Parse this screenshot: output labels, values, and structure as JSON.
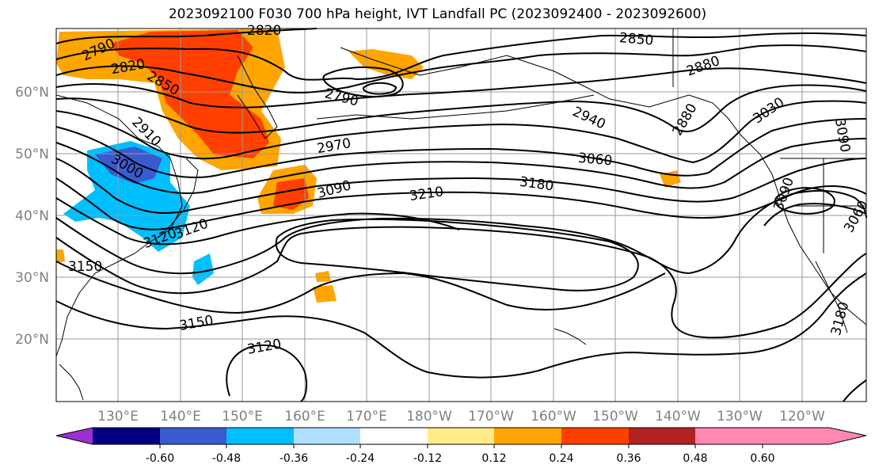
{
  "title": "2023092100 F030 700 hPa height, IVT Landfall PC (2023092400 - 2023092600)",
  "map": {
    "lat_labels": [
      "60°N",
      "50°N",
      "40°N",
      "30°N",
      "20°N"
    ],
    "lon_labels": [
      "130°E",
      "140°E",
      "150°E",
      "160°E",
      "170°E",
      "180°W",
      "170°W",
      "160°W",
      "150°W",
      "140°W",
      "130°W",
      "120°W"
    ],
    "contour_labels": [
      "2790",
      "2820",
      "2820",
      "2850",
      "2850",
      "2880",
      "2880",
      "2910",
      "2940",
      "2970",
      "3000",
      "3030",
      "3060",
      "3060",
      "3090",
      "3090",
      "3120",
      "3120",
      "3150",
      "3150",
      "3180",
      "3180",
      "3210",
      "2790",
      "3090",
      "3120"
    ]
  },
  "colorbar": {
    "colors": [
      "#9b30d0",
      "#000080",
      "#3a5bd0",
      "#00bfff",
      "#b0e0ff",
      "#ffffff",
      "#ffeb8a",
      "#ffa500",
      "#ff4000",
      "#b22222",
      "#ff88b0"
    ],
    "tick_labels": [
      "-0.60",
      "-0.48",
      "-0.36",
      "-0.24",
      "-0.12",
      "0.12",
      "0.24",
      "0.36",
      "0.48",
      "0.60"
    ]
  }
}
